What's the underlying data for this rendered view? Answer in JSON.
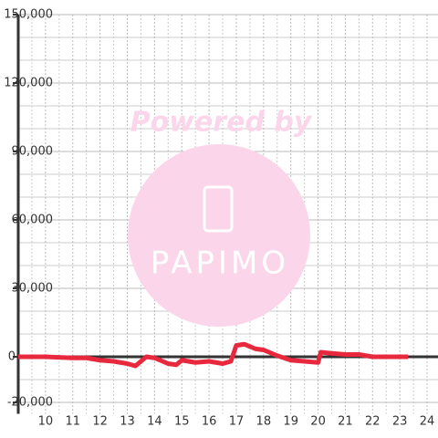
{
  "chart_data": {
    "type": "line",
    "watermark": {
      "line1": "Powered by",
      "line2": "PAPIMO"
    },
    "x": [
      9,
      10,
      11,
      11.5,
      12,
      12.5,
      13,
      13.3,
      13.7,
      14,
      14.5,
      14.8,
      15,
      15.5,
      16,
      16.5,
      16.8,
      17,
      17.3,
      17.7,
      18,
      18.5,
      19,
      19.5,
      20,
      20.1,
      20.5,
      21,
      21.5,
      22,
      23.3
    ],
    "series": [
      {
        "color": "#e8283c",
        "values": [
          0,
          0,
          -500,
          -500,
          -1500,
          -2000,
          -3000,
          -4000,
          0,
          -500,
          -3000,
          -3500,
          -1500,
          -2500,
          -2000,
          -3000,
          -2000,
          5000,
          5500,
          3500,
          3000,
          500,
          -1500,
          -2000,
          -2500,
          2000,
          1500,
          1000,
          1000,
          0,
          0
        ]
      }
    ],
    "xlim": [
      9,
      24.4
    ],
    "xticks": [
      10,
      11,
      12,
      13,
      14,
      15,
      16,
      17,
      18,
      19,
      20,
      21,
      22,
      23,
      24
    ],
    "xminor": [
      9.5,
      10.5,
      11.5,
      12.5,
      13.5,
      14.5,
      15.5,
      16.5,
      17.5,
      18.5,
      19.5,
      20.5,
      21.5,
      22.5,
      23.5
    ],
    "ylim": [
      -25000,
      150000
    ],
    "yticks": [
      {
        "value": -20000,
        "label": "-20,000"
      },
      0,
      {
        "value": 30000,
        "label": "30,000"
      },
      {
        "value": 60000,
        "label": "60,000"
      },
      {
        "value": 90000,
        "label": "90,000"
      },
      {
        "value": 120000,
        "label": "120,000"
      },
      {
        "value": 150000,
        "label": "150,000"
      }
    ],
    "yminor": [
      -10000,
      10000,
      20000,
      40000,
      50000,
      70000,
      80000,
      100000,
      110000,
      130000,
      140000
    ],
    "grid": true
  }
}
